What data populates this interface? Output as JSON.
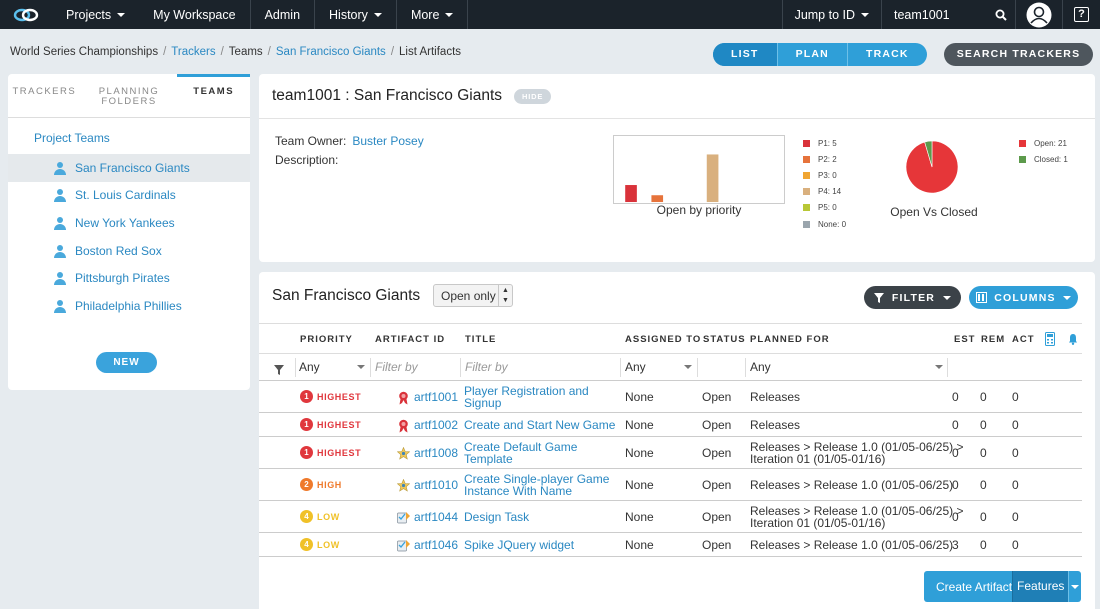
{
  "topbar": {
    "nav": [
      {
        "label": "Projects",
        "caret": true
      },
      {
        "label": "My Workspace",
        "caret": false
      },
      {
        "label": "Admin",
        "caret": false
      },
      {
        "label": "History",
        "caret": true
      },
      {
        "label": "More",
        "caret": true
      }
    ],
    "jump": "Jump to ID",
    "user": "team1001",
    "help": "?"
  },
  "breadcrumb": [
    {
      "label": "World Series Championships",
      "link": false
    },
    {
      "label": "Trackers",
      "link": true
    },
    {
      "label": "Teams",
      "link": false
    },
    {
      "label": "San Francisco Giants",
      "link": true
    },
    {
      "label": "List Artifacts",
      "link": false
    }
  ],
  "view_tabs": [
    "LIST",
    "PLAN",
    "TRACK"
  ],
  "search_trackers": "SEARCH TRACKERS",
  "left_panel": {
    "tabs": [
      {
        "label": "TRACKERS",
        "active": false
      },
      {
        "label": "PLANNING FOLDERS",
        "active": false
      },
      {
        "label": "TEAMS",
        "active": true
      }
    ],
    "project_teams": "Project Teams",
    "teams": [
      {
        "label": "San Francisco Giants",
        "selected": true
      },
      {
        "label": "St. Louis Cardinals",
        "selected": false
      },
      {
        "label": "New York Yankees",
        "selected": false
      },
      {
        "label": "Boston Red Sox",
        "selected": false
      },
      {
        "label": "Pittsburgh Pirates",
        "selected": false
      },
      {
        "label": "Philadelphia Phillies",
        "selected": false
      }
    ],
    "new_label": "NEW"
  },
  "info": {
    "title": "team1001 : San Francisco Giants",
    "hide": "HIDE",
    "owner_label": "Team Owner:",
    "owner": "Buster Posey",
    "desc_label": "Description:"
  },
  "colors": {
    "p1": "#d9323a",
    "p2": "#e6733b",
    "p3": "#f0a532",
    "p4": "#d9b07e",
    "p5": "#b8c736",
    "none": "#9aa5ad",
    "open": "#e63639",
    "closed": "#5c9a4b",
    "accent": "#2f9fd8",
    "highest": "#e0373d",
    "high": "#ef7a2c",
    "low": "#f0c128"
  },
  "chart_data": [
    {
      "type": "bar",
      "title": "Open by priority",
      "categories": [
        "P1",
        "P2",
        "P3",
        "P4",
        "P5",
        "None"
      ],
      "values": [
        5,
        2,
        0,
        14,
        0,
        0
      ],
      "legend": [
        "P1: 5",
        "P2: 2",
        "P3: 0",
        "P4: 14",
        "P5: 0",
        "None: 0"
      ],
      "legend_placement": "right"
    },
    {
      "type": "pie",
      "title": "Open Vs Closed",
      "categories": [
        "Open",
        "Closed"
      ],
      "values": [
        21,
        1
      ],
      "legend": [
        "Open: 21",
        "Closed: 1"
      ],
      "legend_placement": "right"
    }
  ],
  "artifacts": {
    "title": "San Francisco Giants",
    "open_only": "Open only",
    "filter": "FILTER",
    "columns": "COLUMNS",
    "headers": {
      "priority": "PRIORITY",
      "id": "ARTIFACT ID",
      "title": "TITLE",
      "assigned": "ASSIGNED TO",
      "status": "STATUS",
      "planned": "PLANNED FOR",
      "est": "EST",
      "rem": "REM",
      "act": "ACT"
    },
    "filters": {
      "priority": "Any",
      "id": "Filter by",
      "title": "Filter by",
      "assigned": "Any",
      "planned": "Any"
    },
    "rows": [
      {
        "pnum": "1",
        "priority": "HIGHEST",
        "pcolor": "highest",
        "icon": "ribbon",
        "id": "artf1001",
        "title": [
          "Player Registration and",
          "Signup"
        ],
        "assigned": "None",
        "status": "Open",
        "planned": [
          "Releases"
        ],
        "est": "0",
        "rem": "0",
        "act": "0"
      },
      {
        "pnum": "1",
        "priority": "HIGHEST",
        "pcolor": "highest",
        "icon": "ribbon",
        "id": "artf1002",
        "title": [
          "Create and Start New Game"
        ],
        "assigned": "None",
        "status": "Open",
        "planned": [
          "Releases"
        ],
        "est": "0",
        "rem": "0",
        "act": "0"
      },
      {
        "pnum": "1",
        "priority": "HIGHEST",
        "pcolor": "highest",
        "icon": "star",
        "id": "artf1008",
        "title": [
          "Create Default Game",
          "Template"
        ],
        "assigned": "None",
        "status": "Open",
        "planned": [
          "Releases > Release 1.0 (01/05-06/25) >",
          "Iteration 01 (01/05-01/16)"
        ],
        "est": "0",
        "rem": "0",
        "act": "0"
      },
      {
        "pnum": "2",
        "priority": "HIGH",
        "pcolor": "high",
        "icon": "star",
        "id": "artf1010",
        "title": [
          "Create Single-player Game",
          "Instance With Name"
        ],
        "assigned": "None",
        "status": "Open",
        "planned": [
          "Releases > Release 1.0 (01/05-06/25)"
        ],
        "est": "0",
        "rem": "0",
        "act": "0"
      },
      {
        "pnum": "4",
        "priority": "LOW",
        "pcolor": "low",
        "icon": "task",
        "id": "artf1044",
        "title": [
          "Design Task"
        ],
        "assigned": "None",
        "status": "Open",
        "planned": [
          "Releases > Release 1.0 (01/05-06/25) >",
          "Iteration 01 (01/05-01/16)"
        ],
        "est": "0",
        "rem": "0",
        "act": "0"
      },
      {
        "pnum": "4",
        "priority": "LOW",
        "pcolor": "low",
        "icon": "task",
        "id": "artf1046",
        "title": [
          "Spike JQuery widget"
        ],
        "assigned": "None",
        "status": "Open",
        "planned": [
          "Releases > Release 1.0 (01/05-06/25)"
        ],
        "est": "3",
        "rem": "0",
        "act": "0"
      }
    ],
    "create_label": "Create Artifact",
    "create_type": "Features"
  }
}
